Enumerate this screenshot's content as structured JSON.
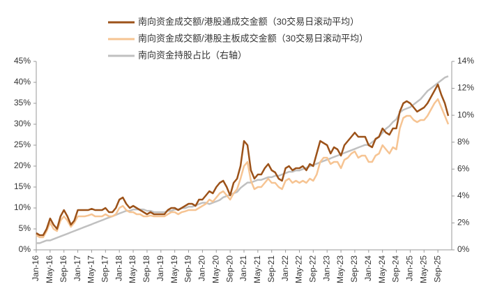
{
  "chart_data": {
    "type": "line",
    "categories": [
      "Jan-16",
      null,
      null,
      null,
      "May-16",
      null,
      null,
      null,
      "Sep-16",
      null,
      null,
      null,
      "Jan-17",
      null,
      null,
      null,
      "May-17",
      null,
      null,
      null,
      "Sep-17",
      null,
      null,
      null,
      "Jan-18",
      null,
      null,
      null,
      "May-18",
      null,
      null,
      null,
      "Sep-18",
      null,
      null,
      null,
      "Jan-19",
      null,
      null,
      null,
      "May-19",
      null,
      null,
      null,
      "Sep-19",
      null,
      null,
      null,
      "Jan-20",
      null,
      null,
      null,
      "May-20",
      null,
      null,
      null,
      "Sep-20",
      null,
      null,
      null,
      "Jan-21",
      null,
      null,
      null,
      "May-21",
      null,
      null,
      null,
      "Sep-21",
      null,
      null,
      null,
      "Jan-22",
      null,
      null,
      null,
      "May-22",
      null,
      null,
      null,
      "Sep-22",
      null,
      null,
      null,
      "Jan-23",
      null,
      null,
      null,
      "May-23",
      null,
      null,
      null,
      "Sep-23",
      null,
      null,
      null,
      "Jan-24",
      null,
      null,
      null,
      "May-24",
      null,
      null,
      null,
      "Sep-24",
      null,
      null,
      null,
      "Jan-25",
      null,
      null,
      null,
      "May-25",
      null,
      null,
      null,
      "Sep-25",
      null,
      null,
      null
    ],
    "series": [
      {
        "name": "南向资金成交额/港股通成交金额（30交易日滚动平均）",
        "color": "#9c5219",
        "values": [
          4,
          3.5,
          3.5,
          5,
          7.5,
          6,
          5,
          8,
          9.5,
          8,
          6,
          7,
          9.5,
          9.5,
          9.5,
          9.5,
          9.8,
          9.5,
          9.5,
          9.5,
          10,
          9,
          9,
          10,
          12,
          12.5,
          11,
          10,
          10.5,
          10,
          9.5,
          9,
          8.5,
          9,
          8.5,
          8.5,
          8.5,
          8.5,
          9.5,
          10,
          10,
          9.5,
          10,
          10.5,
          11,
          11,
          10.5,
          12,
          12,
          13,
          14,
          13.5,
          15,
          16,
          16.5,
          15,
          13,
          16,
          17,
          20,
          26,
          25,
          19,
          17,
          18,
          18,
          19.5,
          20.5,
          19,
          18.5,
          17,
          16.5,
          19.5,
          20,
          19,
          19.5,
          19.5,
          20,
          19,
          20.5,
          20,
          23,
          26,
          25.5,
          25,
          23,
          24.5,
          24,
          22.5,
          25,
          26,
          27,
          28,
          27,
          27,
          27,
          25,
          24.5,
          26.5,
          27,
          29,
          28,
          27.5,
          29,
          29,
          33,
          35,
          35.5,
          35,
          34,
          33,
          33.5,
          34,
          35,
          36.5,
          38,
          39.5,
          37,
          35,
          32
        ]
      },
      {
        "name": "南向资金成交额/港股主板成交金额（30交易日滚动平均）",
        "color": "#f6c493",
        "values": [
          3.5,
          3,
          3,
          4.5,
          6.5,
          5,
          4.5,
          7,
          8,
          7,
          5.5,
          6.5,
          8,
          8,
          8,
          8.2,
          8.5,
          8,
          8,
          8,
          8.5,
          8,
          8,
          8.5,
          10,
          10.5,
          9.5,
          9,
          9,
          8.5,
          8.5,
          8,
          8,
          8.2,
          8,
          8,
          8,
          8,
          8.5,
          9,
          9,
          8.5,
          9,
          9.2,
          9.5,
          9.5,
          9.5,
          10,
          10.5,
          11,
          12,
          11.5,
          12.5,
          13.5,
          14,
          13,
          12,
          13.5,
          14.5,
          17,
          20,
          21,
          16.5,
          14.5,
          15,
          15,
          16,
          17,
          16,
          16,
          15,
          14.5,
          16.5,
          17,
          16,
          16.5,
          16,
          16.5,
          16,
          17,
          16.5,
          18,
          21,
          22,
          22,
          20.5,
          21,
          21,
          19.5,
          21.5,
          22,
          23,
          23.5,
          22,
          22.5,
          22.5,
          21,
          21,
          22.5,
          23,
          25,
          24,
          23,
          24.5,
          24,
          29,
          31.5,
          32,
          32,
          31,
          30.5,
          31,
          31,
          32,
          33.5,
          35,
          36,
          34,
          32,
          30
        ]
      },
      {
        "name": "南向资金持股占比（右轴）",
        "color": "#c0c0c0",
        "axis": "y2",
        "values": [
          0.5,
          0.5,
          0.6,
          0.7,
          0.7,
          0.8,
          0.9,
          1.0,
          1.1,
          1.2,
          1.3,
          1.4,
          1.5,
          1.6,
          1.7,
          1.8,
          1.9,
          2.0,
          2.1,
          2.2,
          2.3,
          2.4,
          2.5,
          2.6,
          2.7,
          2.8,
          2.9,
          2.9,
          3.0,
          3.0,
          3.0,
          3.0,
          2.9,
          2.9,
          2.8,
          2.8,
          2.8,
          2.8,
          2.9,
          2.9,
          3.0,
          3.0,
          3.1,
          3.1,
          3.2,
          3.2,
          3.3,
          3.4,
          3.5,
          3.5,
          3.4,
          3.5,
          3.6,
          3.7,
          3.9,
          4.0,
          4.1,
          4.2,
          4.3,
          4.6,
          4.8,
          5.0,
          5.0,
          5.1,
          5.2,
          5.2,
          5.3,
          5.4,
          5.4,
          5.5,
          5.5,
          5.6,
          5.7,
          5.8,
          5.8,
          5.9,
          5.9,
          6.0,
          6.1,
          6.2,
          6.3,
          6.4,
          6.5,
          6.6,
          6.7,
          6.8,
          6.9,
          7.0,
          7.1,
          7.2,
          7.3,
          7.4,
          7.5,
          7.6,
          7.7,
          7.8,
          7.8,
          8.0,
          8.2,
          8.4,
          8.7,
          9.0,
          9.2,
          9.5,
          9.7,
          10.2,
          10.4,
          10.5,
          10.6,
          10.8,
          11.0,
          11.2,
          11.5,
          11.8,
          12.0,
          12.2,
          12.4,
          12.6,
          12.8,
          12.9
        ]
      }
    ],
    "ylim": [
      0,
      45
    ],
    "yticks": [
      {
        "value": 0,
        "label": "0%"
      },
      {
        "value": 5,
        "label": "5%"
      },
      {
        "value": 10,
        "label": "10%"
      },
      {
        "value": 15,
        "label": "15%"
      },
      {
        "value": 20,
        "label": "20%"
      },
      {
        "value": 25,
        "label": "25%"
      },
      {
        "value": 30,
        "label": "30%"
      },
      {
        "value": 35,
        "label": "35%"
      },
      {
        "value": 40,
        "label": "40%"
      },
      {
        "value": 45,
        "label": "45%"
      }
    ],
    "y2lim": [
      0,
      14
    ],
    "y2ticks": [
      {
        "value": 0,
        "label": "0%"
      },
      {
        "value": 2,
        "label": "2%"
      },
      {
        "value": 4,
        "label": "4%"
      },
      {
        "value": 6,
        "label": "6%"
      },
      {
        "value": 8,
        "label": "8%"
      },
      {
        "value": 10,
        "label": "10%"
      },
      {
        "value": 12,
        "label": "12%"
      },
      {
        "value": 14,
        "label": "14%"
      }
    ],
    "legend": "top"
  }
}
